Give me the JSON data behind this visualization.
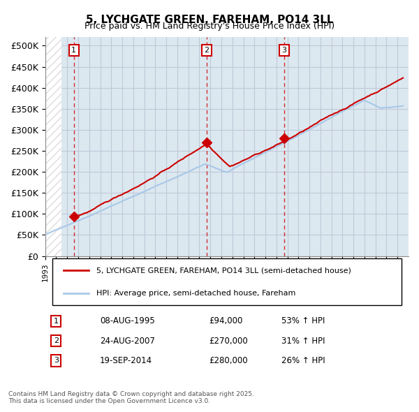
{
  "title": "5, LYCHGATE GREEN, FAREHAM, PO14 3LL",
  "subtitle": "Price paid vs. HM Land Registry's House Price Index (HPI)",
  "legend_line1": "5, LYCHGATE GREEN, FAREHAM, PO14 3LL (semi-detached house)",
  "legend_line2": "HPI: Average price, semi-detached house, Fareham",
  "footer_line1": "Contains HM Land Registry data © Crown copyright and database right 2025.",
  "footer_line2": "This data is licensed under the Open Government Licence v3.0.",
  "transactions": [
    {
      "label": "1",
      "date": "08-AUG-1995",
      "price": 94000,
      "hpi_pct": "53% ↑ HPI",
      "year": 1995.6
    },
    {
      "label": "2",
      "date": "24-AUG-2007",
      "price": 270000,
      "hpi_pct": "31% ↑ HPI",
      "year": 2007.65
    },
    {
      "label": "3",
      "date": "19-SEP-2014",
      "price": 280000,
      "hpi_pct": "26% ↑ HPI",
      "year": 2014.72
    }
  ],
  "ylim": [
    0,
    520000
  ],
  "yticks": [
    0,
    50000,
    100000,
    150000,
    200000,
    250000,
    300000,
    350000,
    400000,
    450000,
    500000
  ],
  "ytick_labels": [
    "£0",
    "£50K",
    "£100K",
    "£150K",
    "£200K",
    "£250K",
    "£300K",
    "£350K",
    "£400K",
    "£450K",
    "£500K"
  ],
  "xlim_start": 1993.0,
  "xlim_end": 2026.0,
  "hpi_color": "#a8c8e8",
  "price_color": "#cc0000",
  "transaction_color": "#cc0000",
  "dashed_color": "#cc0000",
  "bg_hatch_color": "#dddddd",
  "grid_color": "#c0c8d8",
  "plot_bg": "#dce8f0"
}
